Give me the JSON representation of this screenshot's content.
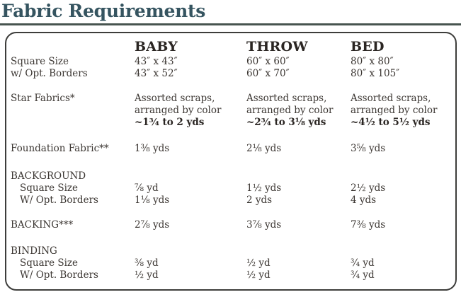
{
  "page_title": "Fabric Requirements",
  "colors": {
    "title_text": "#355460",
    "title_rule": "#47544f",
    "box_border": "#3d3d3b",
    "body_text": "#3c3733",
    "bold_text": "#2a2522",
    "background": "#ffffff"
  },
  "table": {
    "columns": [
      "BABY",
      "THROW",
      "BED"
    ],
    "size_rows": [
      {
        "label": "Square Size",
        "baby": "43″ x 43″",
        "throw": "60″ x 60″",
        "bed": "80″ x 80″"
      },
      {
        "label": "w/ Opt. Borders",
        "baby": "43″ x 52″",
        "throw": "60″ x 70″",
        "bed": "80″ x 105″"
      }
    ],
    "star_fabrics": {
      "label": "Star Fabrics*",
      "description_line1": "Assorted scraps,",
      "description_line2": "arranged by color",
      "baby_amount": "~1¾ to 2 yds",
      "throw_amount": "~2¾ to 3⅛ yds",
      "bed_amount": "~4½ to 5½ yds"
    },
    "foundation": {
      "label": "Foundation Fabric**",
      "baby": "1⅜ yds",
      "throw": "2⅛ yds",
      "bed": "3⅝ yds"
    },
    "background_section": {
      "label": "BACKGROUND",
      "rows": [
        {
          "label": "Square Size",
          "baby": "⅞ yd",
          "throw": "1½ yds",
          "bed": "2½ yds"
        },
        {
          "label": "W/ Opt. Borders",
          "baby": "1⅛ yds",
          "throw": "2 yds",
          "bed": "4 yds"
        }
      ]
    },
    "backing": {
      "label": "BACKING***",
      "baby": "2⅞ yds",
      "throw": "3⅞ yds",
      "bed": "7⅜ yds"
    },
    "binding_section": {
      "label": "BINDING",
      "rows": [
        {
          "label": "Square Size",
          "baby": "⅜ yd",
          "throw": "½ yd",
          "bed": "¾ yd"
        },
        {
          "label": "W/ Opt. Borders",
          "baby": "½ yd",
          "throw": "½ yd",
          "bed": "¾ yd"
        }
      ]
    }
  }
}
